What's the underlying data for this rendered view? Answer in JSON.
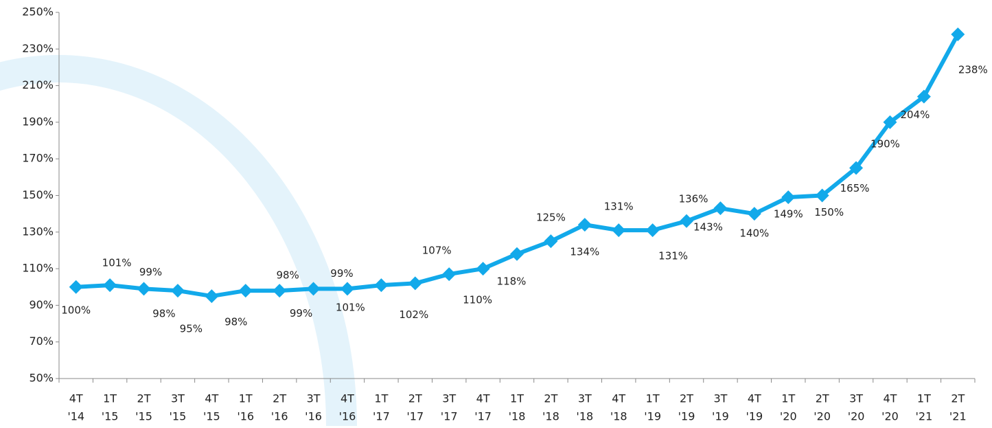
{
  "chart_data": {
    "type": "line",
    "categories": [
      [
        "4T",
        "'14"
      ],
      [
        "1T",
        "'15"
      ],
      [
        "2T",
        "'15"
      ],
      [
        "3T",
        "'15"
      ],
      [
        "4T",
        "'15"
      ],
      [
        "1T",
        "'16"
      ],
      [
        "2T",
        "'16"
      ],
      [
        "3T",
        "'16"
      ],
      [
        "4T",
        "'16"
      ],
      [
        "1T",
        "'17"
      ],
      [
        "2T",
        "'17"
      ],
      [
        "3T",
        "'17"
      ],
      [
        "4T",
        "'17"
      ],
      [
        "1T",
        "'18"
      ],
      [
        "2T",
        "'18"
      ],
      [
        "3T",
        "'18"
      ],
      [
        "4T",
        "'18"
      ],
      [
        "1T",
        "'19"
      ],
      [
        "2T",
        "'19"
      ],
      [
        "3T",
        "'19"
      ],
      [
        "4T",
        "'19"
      ],
      [
        "1T",
        "'20"
      ],
      [
        "2T",
        "'20"
      ],
      [
        "3T",
        "'20"
      ],
      [
        "4T",
        "'20"
      ],
      [
        "1T",
        "'21"
      ],
      [
        "2T",
        "'21"
      ]
    ],
    "values": [
      100,
      101,
      99,
      98,
      95,
      98,
      98,
      99,
      99,
      101,
      102,
      107,
      110,
      118,
      125,
      134,
      131,
      131,
      136,
      143,
      140,
      149,
      150,
      165,
      190,
      204,
      238
    ],
    "value_labels": [
      "100%",
      "101%",
      "99%",
      "98%",
      "95%",
      "98%",
      "98%",
      "99%",
      "99%",
      "101%",
      "102%",
      "107%",
      "110%",
      "118%",
      "125%",
      "134%",
      "131%",
      "131%",
      "136%",
      "143%",
      "140%",
      "149%",
      "150%",
      "165%",
      "190%",
      "204%",
      "238%"
    ],
    "color": "#12a9ea",
    "ylim": [
      50,
      250
    ],
    "yticks": [
      {
        "value": 50,
        "label": "50%"
      },
      {
        "value": 70,
        "label": "70%"
      },
      {
        "value": 90,
        "label": "90%"
      },
      {
        "value": 110,
        "label": "110%"
      },
      {
        "value": 130,
        "label": "130%"
      },
      {
        "value": 150,
        "label": "150%"
      },
      {
        "value": 170,
        "label": "170%"
      },
      {
        "value": 190,
        "label": "190%"
      },
      {
        "value": 210,
        "label": "210%"
      },
      {
        "value": 230,
        "label": "230%"
      },
      {
        "value": 250,
        "label": "250%"
      }
    ],
    "grid": false
  }
}
